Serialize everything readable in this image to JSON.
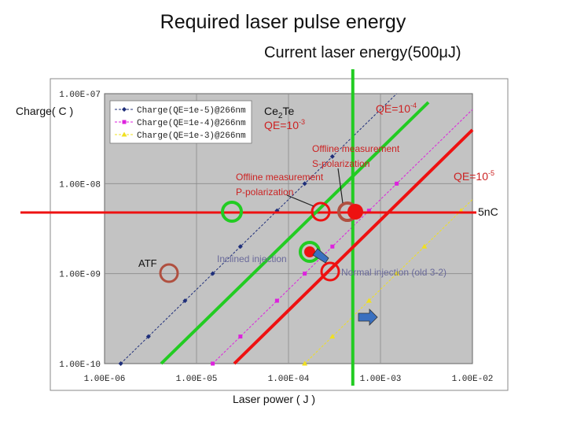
{
  "title": "Required laser pulse energy",
  "subtitle": "Current laser energy(500μJ)",
  "chart_data": {
    "type": "line",
    "xscale": "log",
    "yscale": "log",
    "xlim": [
      1e-06,
      0.01
    ],
    "ylim": [
      1e-10,
      1e-07
    ],
    "grid": true,
    "legend_position": "top-left",
    "ylabel": "Charge( C )",
    "xlabel": "Laser power ( J )",
    "x_ticks": [
      "1.00E-06",
      "1.00E-05",
      "1.00E-04",
      "1.00E-03",
      "1.00E-02"
    ],
    "y_ticks": [
      "1.00E-07",
      "1.00E-08",
      "1.00E-09",
      "1.00E-10"
    ],
    "series": [
      {
        "name": "Charge(QE=1e-5)@266nm",
        "color": "#1f2f7a",
        "marker": "diamond",
        "x": [
          1.5e-06,
          3e-06,
          7.5e-06,
          1.5e-05,
          3e-05,
          7.5e-05,
          0.00015,
          0.0003
        ],
        "y": [
          1e-10,
          2e-10,
          5e-10,
          1e-09,
          2e-09,
          5e-09,
          1e-08,
          2e-08
        ]
      },
      {
        "name": "Charge(QE=1e-4)@266nm",
        "color": "#dd22dd",
        "marker": "square",
        "x": [
          1.5e-05,
          3e-05,
          7.5e-05,
          0.00015,
          0.0003,
          0.00075,
          0.0015
        ],
        "y": [
          1e-10,
          2e-10,
          5e-10,
          1e-09,
          2e-09,
          5e-09,
          1e-08
        ]
      },
      {
        "name": "Charge(QE=1e-3)@266nm",
        "color": "#f0e020",
        "marker": "triangle",
        "x": [
          0.00015,
          0.0003,
          0.00075,
          0.0015,
          0.003,
          0.0075
        ],
        "y": [
          1e-10,
          2e-10,
          5e-10,
          1e-09,
          2e-09,
          5e-09
        ]
      }
    ],
    "overlays": {
      "green_line_color": "#22cc22",
      "red_line_color": "#ee1111",
      "circle_green": "#22cc22",
      "circle_red": "#ee1111",
      "circle_brown": "#b05040",
      "arrow_blue": "#3a70c0",
      "annotation_red": "#cc2222",
      "annotation_dark": "#222222"
    },
    "annotations": {
      "ce2te": "Ce",
      "ce2te_sub": "2",
      "ce2te_end": "Te",
      "qe_ce2te": "QE=10",
      "qe_ce2te_exp": "-3",
      "qe_4": "QE=10",
      "qe_4_exp": "-4",
      "qe_5": "QE=10",
      "qe_5_exp": "-5",
      "offline_s_1": "Offline measurement",
      "offline_s_2": "S-polarization",
      "offline_p_1": "Offline measurement",
      "offline_p_2": "P-polarization",
      "five_nc": "5nC",
      "atf": "ATF",
      "inclined": "Inclined injection",
      "normal": "Normal injection (old 3-2)"
    }
  }
}
